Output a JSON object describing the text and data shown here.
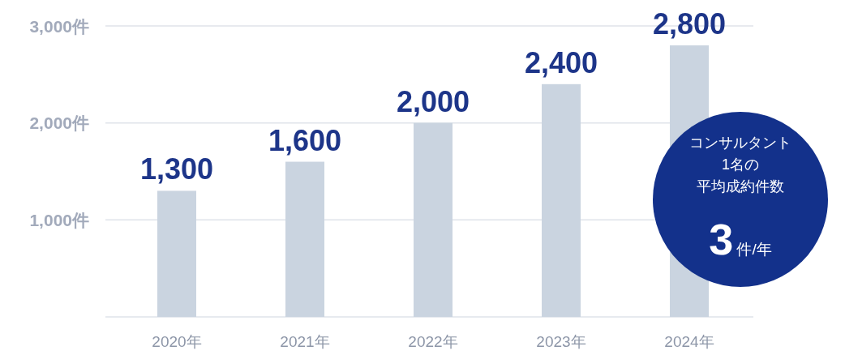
{
  "chart_data": {
    "type": "bar",
    "categories": [
      "2020年",
      "2021年",
      "2022年",
      "2023年",
      "2024年"
    ],
    "values": [
      1300,
      1600,
      2000,
      2400,
      2800
    ],
    "color": "#cad4e0",
    "value_labels": [
      "1,300",
      "1,600",
      "2,000",
      "2,400",
      "2,800"
    ],
    "ylim": [
      0,
      3000
    ],
    "yticks": [
      {
        "value": 0,
        "label": null
      },
      {
        "value": 1000,
        "label": "1,000件"
      },
      {
        "value": 2000,
        "label": "2,000件"
      },
      {
        "value": 3000,
        "label": "3,000件"
      }
    ],
    "grid": "y",
    "annotations": [
      "コンサルタント",
      "1名の",
      "平均成約件数",
      "3件/年"
    ]
  }
}
